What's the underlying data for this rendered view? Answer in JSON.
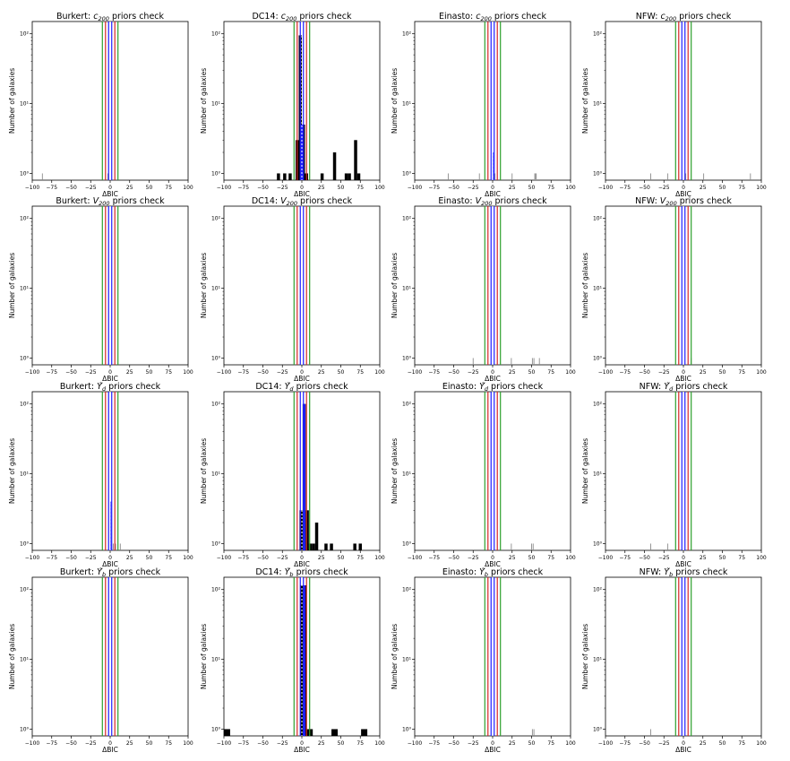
{
  "chart_data": [
    {
      "type": "bar",
      "method": "Burkert",
      "param": "c",
      "sub": "200",
      "row": 0,
      "col": 0,
      "title_suffix": " priors check",
      "xlabel": "ΔBIC",
      "ylabel": "Number of galaxies",
      "xlim": [
        -100,
        100
      ],
      "ylim": [
        0.8,
        150
      ],
      "yscale": "log",
      "x_ticks": [
        "−100",
        "−75",
        "−50",
        "−25",
        "0",
        "25",
        "50",
        "75",
        "100"
      ],
      "y_ticks": [
        "10⁰",
        "10¹",
        "10²"
      ],
      "bars": [
        {
          "x": -87,
          "w": 1,
          "v": 1,
          "color": "#888888"
        },
        {
          "x": -3,
          "w": 1,
          "v": 1,
          "color": "#888888"
        }
      ]
    },
    {
      "type": "bar",
      "method": "DC14",
      "param": "c",
      "sub": "200",
      "row": 0,
      "col": 1,
      "title_suffix": " priors check",
      "xlabel": "ΔBIC",
      "ylabel": "Number of galaxies",
      "xlim": [
        -100,
        100
      ],
      "ylim": [
        0.8,
        150
      ],
      "yscale": "log",
      "x_ticks": [
        "−100",
        "−75",
        "−50",
        "−25",
        "0",
        "25",
        "50",
        "75",
        "100"
      ],
      "y_ticks": [
        "10⁰",
        "10¹",
        "10²"
      ],
      "bars": [
        {
          "x": -30,
          "w": 4,
          "v": 1,
          "color": "#000000"
        },
        {
          "x": -22,
          "w": 4,
          "v": 1,
          "color": "#000000"
        },
        {
          "x": -15,
          "w": 4,
          "v": 1,
          "color": "#000000"
        },
        {
          "x": -6,
          "w": 4,
          "v": 3,
          "color": "#000000"
        },
        {
          "x": -2,
          "w": 4,
          "v": 95,
          "color": "#000000"
        },
        {
          "x": 2,
          "w": 4,
          "v": 5,
          "color": "#000000"
        },
        {
          "x": 6,
          "w": 4,
          "v": 1,
          "color": "#000000"
        },
        {
          "x": 26,
          "w": 4,
          "v": 1,
          "color": "#000000"
        },
        {
          "x": 42,
          "w": 4,
          "v": 2,
          "color": "#000000"
        },
        {
          "x": 57,
          "w": 4,
          "v": 1,
          "color": "#000000"
        },
        {
          "x": 61,
          "w": 4,
          "v": 1,
          "color": "#000000"
        },
        {
          "x": 69,
          "w": 4,
          "v": 3,
          "color": "#000000"
        },
        {
          "x": 73,
          "w": 4,
          "v": 1,
          "color": "#000000"
        },
        {
          "x": 0,
          "w": 3,
          "v": 5,
          "color": "#1f1fff"
        }
      ]
    },
    {
      "type": "bar",
      "method": "Einasto",
      "param": "c",
      "sub": "200",
      "row": 0,
      "col": 2,
      "title_suffix": " priors check",
      "xlabel": "ΔBIC",
      "ylabel": "Number of galaxies",
      "xlim": [
        -100,
        100
      ],
      "ylim": [
        0.8,
        150
      ],
      "yscale": "log",
      "x_ticks": [
        "−100",
        "−75",
        "−50",
        "−25",
        "0",
        "25",
        "50",
        "75",
        "100"
      ],
      "y_ticks": [
        "10⁰",
        "10¹",
        "10²"
      ],
      "bars": [
        {
          "x": -57,
          "w": 1,
          "v": 1,
          "color": "#888888"
        },
        {
          "x": -17,
          "w": 1,
          "v": 1,
          "color": "#888888"
        },
        {
          "x": 1,
          "w": 1,
          "v": 2,
          "color": "#1f1fff"
        },
        {
          "x": 3,
          "w": 1,
          "v": 1,
          "color": "#888888"
        },
        {
          "x": 25,
          "w": 1,
          "v": 1,
          "color": "#888888"
        },
        {
          "x": 55,
          "w": 3,
          "v": 1,
          "color": "#999999"
        }
      ]
    },
    {
      "type": "bar",
      "method": "NFW",
      "param": "c",
      "sub": "200",
      "row": 0,
      "col": 3,
      "title_suffix": " priors check",
      "xlabel": "ΔBIC",
      "ylabel": "Number of galaxies",
      "xlim": [
        -100,
        100
      ],
      "ylim": [
        0.8,
        150
      ],
      "yscale": "log",
      "x_ticks": [
        "−100",
        "−75",
        "−50",
        "−25",
        "0",
        "25",
        "50",
        "75",
        "100"
      ],
      "y_ticks": [
        "10⁰",
        "10¹",
        "10²"
      ],
      "bars": [
        {
          "x": -42,
          "w": 1,
          "v": 1,
          "color": "#888888"
        },
        {
          "x": -20,
          "w": 1,
          "v": 1,
          "color": "#888888"
        },
        {
          "x": 3,
          "w": 1,
          "v": 1,
          "color": "#888888"
        },
        {
          "x": 26,
          "w": 1,
          "v": 1,
          "color": "#888888"
        },
        {
          "x": 86,
          "w": 1,
          "v": 1,
          "color": "#888888"
        }
      ]
    },
    {
      "type": "bar",
      "method": "Burkert",
      "param": "V",
      "sub": "200",
      "row": 1,
      "col": 0,
      "title_suffix": " priors check",
      "xlabel": "ΔBIC",
      "ylabel": "Number of galaxies",
      "xlim": [
        -100,
        100
      ],
      "ylim": [
        0.8,
        150
      ],
      "yscale": "log",
      "x_ticks": [
        "−100",
        "−75",
        "−50",
        "−25",
        "0",
        "25",
        "50",
        "75",
        "100"
      ],
      "y_ticks": [
        "10⁰",
        "10¹",
        "10²"
      ],
      "bars": []
    },
    {
      "type": "bar",
      "method": "DC14",
      "param": "V",
      "sub": "200",
      "row": 1,
      "col": 1,
      "title_suffix": " priors check",
      "xlabel": "ΔBIC",
      "ylabel": "Number of galaxies",
      "xlim": [
        -100,
        100
      ],
      "ylim": [
        0.8,
        150
      ],
      "yscale": "log",
      "x_ticks": [
        "−100",
        "−75",
        "−50",
        "−25",
        "0",
        "25",
        "50",
        "75",
        "100"
      ],
      "y_ticks": [
        "10⁰",
        "10¹",
        "10²"
      ],
      "bars": []
    },
    {
      "type": "bar",
      "method": "Einasto",
      "param": "V",
      "sub": "200",
      "row": 1,
      "col": 2,
      "title_suffix": " priors check",
      "xlabel": "ΔBIC",
      "ylabel": "Number of galaxies",
      "xlim": [
        -100,
        100
      ],
      "ylim": [
        0.8,
        150
      ],
      "yscale": "log",
      "x_ticks": [
        "−100",
        "−75",
        "−50",
        "−25",
        "0",
        "25",
        "50",
        "75",
        "100"
      ],
      "y_ticks": [
        "10⁰",
        "10¹",
        "10²"
      ],
      "bars": [
        {
          "x": -25,
          "w": 1,
          "v": 1,
          "color": "#888888"
        },
        {
          "x": 24,
          "w": 1,
          "v": 1,
          "color": "#888888"
        },
        {
          "x": 51,
          "w": 1,
          "v": 1,
          "color": "#888888"
        },
        {
          "x": 53,
          "w": 1,
          "v": 1,
          "color": "#888888"
        },
        {
          "x": 60,
          "w": 1,
          "v": 1,
          "color": "#888888"
        }
      ]
    },
    {
      "type": "bar",
      "method": "NFW",
      "param": "V",
      "sub": "200",
      "row": 1,
      "col": 3,
      "title_suffix": " priors check",
      "xlabel": "ΔBIC",
      "ylabel": "Number of galaxies",
      "xlim": [
        -100,
        100
      ],
      "ylim": [
        0.8,
        150
      ],
      "yscale": "log",
      "x_ticks": [
        "−100",
        "−75",
        "−50",
        "−25",
        "0",
        "25",
        "50",
        "75",
        "100"
      ],
      "y_ticks": [
        "10⁰",
        "10¹",
        "10²"
      ],
      "bars": [
        {
          "x": 10,
          "w": 1,
          "v": 1,
          "color": "#888888"
        }
      ]
    },
    {
      "type": "bar",
      "method": "Burkert",
      "param": "Υ̃",
      "sub": "d",
      "row": 2,
      "col": 0,
      "title_suffix": " priors check",
      "xlabel": "ΔBIC",
      "ylabel": "Number of galaxies",
      "xlim": [
        -100,
        100
      ],
      "ylim": [
        0.8,
        150
      ],
      "yscale": "log",
      "x_ticks": [
        "−100",
        "−75",
        "−50",
        "−25",
        "0",
        "25",
        "50",
        "75",
        "100"
      ],
      "y_ticks": [
        "10⁰",
        "10¹",
        "10²"
      ],
      "bars": [
        {
          "x": 1,
          "w": 1,
          "v": 4,
          "color": "#1f1fff"
        },
        {
          "x": 4,
          "w": 1,
          "v": 1,
          "color": "#888888"
        },
        {
          "x": 7,
          "w": 1,
          "v": 1,
          "color": "#888888"
        },
        {
          "x": 13,
          "w": 1,
          "v": 1,
          "color": "#888888"
        }
      ]
    },
    {
      "type": "bar",
      "method": "DC14",
      "param": "Υ̃",
      "sub": "d",
      "row": 2,
      "col": 1,
      "title_suffix": " priors check",
      "xlabel": "ΔBIC",
      "ylabel": "Number of galaxies",
      "xlim": [
        -100,
        100
      ],
      "ylim": [
        0.8,
        150
      ],
      "yscale": "log",
      "x_ticks": [
        "−100",
        "−75",
        "−50",
        "−25",
        "0",
        "25",
        "50",
        "75",
        "100"
      ],
      "y_ticks": [
        "10⁰",
        "10¹",
        "10²"
      ],
      "bars": [
        {
          "x": -1,
          "w": 4,
          "v": 3,
          "color": "#000000"
        },
        {
          "x": 3,
          "w": 4,
          "v": 100,
          "color": "#000000"
        },
        {
          "x": 7,
          "w": 4,
          "v": 3,
          "color": "#000000"
        },
        {
          "x": 11,
          "w": 4,
          "v": 1,
          "color": "#000000"
        },
        {
          "x": 15,
          "w": 4,
          "v": 1,
          "color": "#000000"
        },
        {
          "x": 19,
          "w": 4,
          "v": 2,
          "color": "#000000"
        },
        {
          "x": 31,
          "w": 4,
          "v": 1,
          "color": "#000000"
        },
        {
          "x": 38,
          "w": 4,
          "v": 1,
          "color": "#000000"
        },
        {
          "x": 68,
          "w": 4,
          "v": 1,
          "color": "#000000"
        },
        {
          "x": 75,
          "w": 4,
          "v": 1,
          "color": "#000000"
        },
        {
          "x": 3,
          "w": 3,
          "v": 100,
          "color": "#1f1fff"
        }
      ]
    },
    {
      "type": "bar",
      "method": "Einasto",
      "param": "Υ̃",
      "sub": "d",
      "row": 2,
      "col": 2,
      "title_suffix": " priors check",
      "xlabel": "ΔBIC",
      "ylabel": "Number of galaxies",
      "xlim": [
        -100,
        100
      ],
      "ylim": [
        0.8,
        150
      ],
      "yscale": "log",
      "x_ticks": [
        "−100",
        "−75",
        "−50",
        "−25",
        "0",
        "25",
        "50",
        "75",
        "100"
      ],
      "y_ticks": [
        "10⁰",
        "10¹",
        "10²"
      ],
      "bars": [
        {
          "x": 24,
          "w": 1,
          "v": 1,
          "color": "#888888"
        },
        {
          "x": 50,
          "w": 1,
          "v": 1,
          "color": "#888888"
        },
        {
          "x": 52,
          "w": 1,
          "v": 1,
          "color": "#888888"
        }
      ]
    },
    {
      "type": "bar",
      "method": "NFW",
      "param": "Υ̃",
      "sub": "d",
      "row": 2,
      "col": 3,
      "title_suffix": " priors check",
      "xlabel": "ΔBIC",
      "ylabel": "Number of galaxies",
      "xlim": [
        -100,
        100
      ],
      "ylim": [
        0.8,
        150
      ],
      "yscale": "log",
      "x_ticks": [
        "−100",
        "−75",
        "−50",
        "−25",
        "0",
        "25",
        "50",
        "75",
        "100"
      ],
      "y_ticks": [
        "10⁰",
        "10¹",
        "10²"
      ],
      "bars": [
        {
          "x": -42,
          "w": 1,
          "v": 1,
          "color": "#888888"
        },
        {
          "x": -20,
          "w": 1,
          "v": 1,
          "color": "#888888"
        }
      ]
    },
    {
      "type": "bar",
      "method": "Burkert",
      "param": "Υ̃",
      "sub": "b",
      "row": 3,
      "col": 0,
      "title_suffix": " priors check",
      "xlabel": "ΔBIC",
      "ylabel": "Number of galaxies",
      "xlim": [
        -100,
        100
      ],
      "ylim": [
        0.8,
        150
      ],
      "yscale": "log",
      "x_ticks": [
        "−100",
        "−75",
        "−50",
        "−25",
        "0",
        "25",
        "50",
        "75",
        "100"
      ],
      "y_ticks": [
        "10⁰",
        "10¹",
        "10²"
      ],
      "bars": []
    },
    {
      "type": "bar",
      "method": "DC14",
      "param": "Υ̃",
      "sub": "b",
      "row": 3,
      "col": 1,
      "title_suffix": " priors check",
      "xlabel": "ΔBIC",
      "ylabel": "Number of galaxies",
      "xlim": [
        -100,
        100
      ],
      "ylim": [
        0.8,
        150
      ],
      "yscale": "log",
      "x_ticks": [
        "−100",
        "−75",
        "−50",
        "−25",
        "0",
        "25",
        "50",
        "75",
        "100"
      ],
      "y_ticks": [
        "10⁰",
        "10¹",
        "10²"
      ],
      "bars": [
        {
          "x": -96,
          "w": 8,
          "v": 1,
          "color": "#000000"
        },
        {
          "x": 2,
          "w": 8,
          "v": 115,
          "color": "#000000"
        },
        {
          "x": 10,
          "w": 8,
          "v": 1,
          "color": "#000000"
        },
        {
          "x": 42,
          "w": 8,
          "v": 1,
          "color": "#000000"
        },
        {
          "x": 80,
          "w": 8,
          "v": 1,
          "color": "#000000"
        },
        {
          "x": 3,
          "w": 3,
          "v": 115,
          "color": "#1f1fff"
        }
      ]
    },
    {
      "type": "bar",
      "method": "Einasto",
      "param": "Υ̃",
      "sub": "b",
      "row": 3,
      "col": 2,
      "title_suffix": " priors check",
      "xlabel": "ΔBIC",
      "ylabel": "Number of galaxies",
      "xlim": [
        -100,
        100
      ],
      "ylim": [
        0.8,
        150
      ],
      "yscale": "log",
      "x_ticks": [
        "−100",
        "−75",
        "−50",
        "−25",
        "0",
        "25",
        "50",
        "75",
        "100"
      ],
      "y_ticks": [
        "10⁰",
        "10¹",
        "10²"
      ],
      "bars": [
        {
          "x": 51,
          "w": 1,
          "v": 1,
          "color": "#888888"
        },
        {
          "x": 53,
          "w": 1,
          "v": 1,
          "color": "#888888"
        }
      ]
    },
    {
      "type": "bar",
      "method": "NFW",
      "param": "Υ̃",
      "sub": "b",
      "row": 3,
      "col": 3,
      "title_suffix": " priors check",
      "xlabel": "ΔBIC",
      "ylabel": "Number of galaxies",
      "xlim": [
        -100,
        100
      ],
      "ylim": [
        0.8,
        150
      ],
      "yscale": "log",
      "x_ticks": [
        "−100",
        "−75",
        "−50",
        "−25",
        "0",
        "25",
        "50",
        "75",
        "100"
      ],
      "y_ticks": [
        "10⁰",
        "10¹",
        "10²"
      ],
      "bars": [
        {
          "x": -42,
          "w": 1,
          "v": 1,
          "color": "#888888"
        }
      ]
    }
  ],
  "threshold_lines": [
    {
      "x": -10,
      "color": "#2ca02c"
    },
    {
      "x": -6,
      "color": "#d62728"
    },
    {
      "x": -2,
      "color": "#1f1fff"
    },
    {
      "x": 0,
      "color": "#ffffff",
      "style": "dotted"
    },
    {
      "x": 2,
      "color": "#1f1fff"
    },
    {
      "x": 6,
      "color": "#d62728"
    },
    {
      "x": 10,
      "color": "#2ca02c"
    }
  ]
}
